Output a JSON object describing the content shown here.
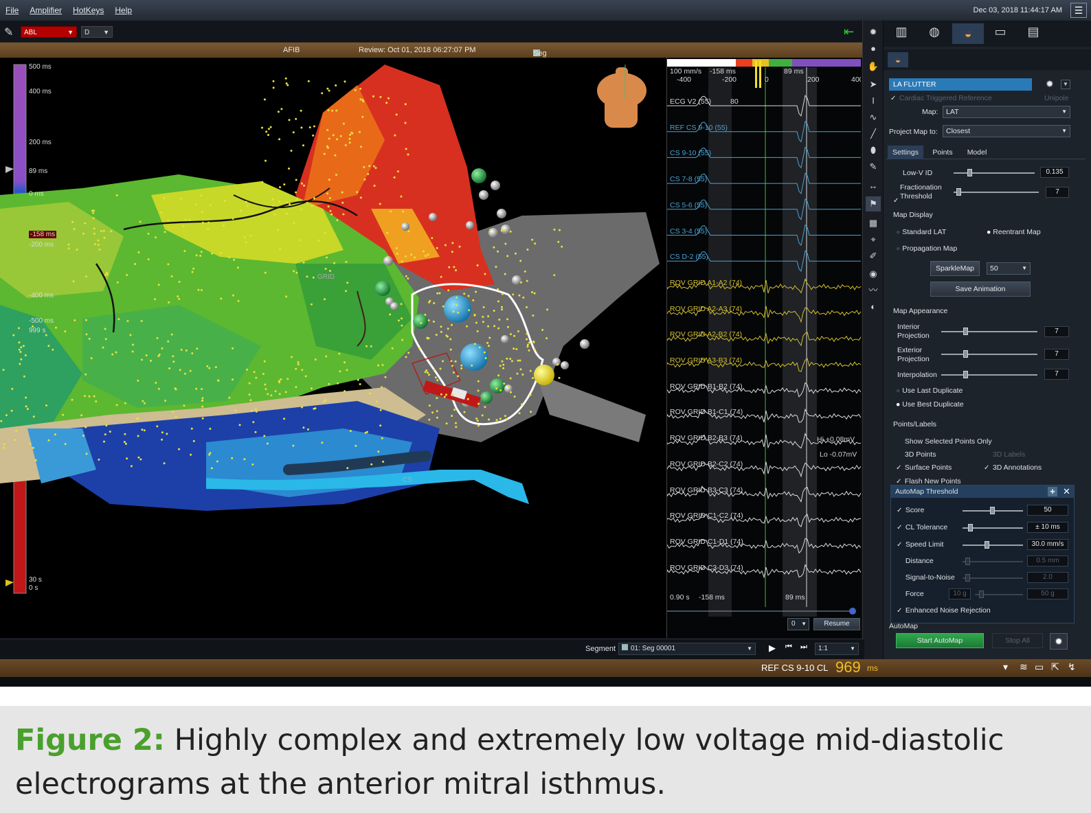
{
  "menu": [
    "File",
    "Amplifier",
    "HotKeys",
    "Help"
  ],
  "datetime": "Dec 03, 2018 11:44:17 AM",
  "toolbar": {
    "catheter": "ABL",
    "electrode": "D"
  },
  "infobar": {
    "mode": "AFIB",
    "review": "Review: Oct 01, 2018 06:27:07 PM",
    "segment": "Seg 00001"
  },
  "scale": {
    "ticks": [
      "500 ms",
      "400 ms",
      "200 ms",
      "89 ms",
      "0 ms",
      "-158 ms",
      "-200 ms",
      "-400 ms",
      "-500 ms",
      "999 s",
      "30 s",
      "0 s"
    ]
  },
  "scene_labels": {
    "grid": "GRID",
    "cs": "CS"
  },
  "egm": {
    "header": {
      "speed": "100 mm/s",
      "left": "-400",
      "ref": "-158 ms",
      "minus200": "-200",
      "zero": "0",
      "ms89": "89 ms",
      "p200": "200",
      "p400": "400"
    },
    "channels": [
      {
        "name": "ECG V2 (55)",
        "extra": "80",
        "color": "#d8dbe0"
      },
      {
        "name": "REF CS 9-10 (55)",
        "color": "#4aa3d8"
      },
      {
        "name": "CS 9-10 (55)",
        "color": "#4aa3d8"
      },
      {
        "name": "CS 7-8 (55)",
        "color": "#4aa3d8"
      },
      {
        "name": "CS 5-6 (55)",
        "color": "#4aa3d8"
      },
      {
        "name": "CS 3-4 (55)",
        "color": "#4aa3d8"
      },
      {
        "name": "CS D-2 (55)",
        "color": "#4aa3d8"
      },
      {
        "name": "ROV GRID A1-A2 (74)",
        "color": "#d4c030"
      },
      {
        "name": "ROV GRID A2-A3 (74)",
        "color": "#d4c030"
      },
      {
        "name": "ROV GRID A2-B2 (74)",
        "color": "#d4c030"
      },
      {
        "name": "ROV GRID A3-B3 (74)",
        "color": "#d4c030"
      },
      {
        "name": "ROV GRID B1-B2 (74)",
        "color": "#d8dbe0"
      },
      {
        "name": "ROV GRID B1-C1 (74)",
        "color": "#d8dbe0"
      },
      {
        "name": "ROV GRID B2-B3 (74)",
        "color": "#d8dbe0"
      },
      {
        "name": "ROV GRID B2-C2 (74)",
        "color": "#d8dbe0"
      },
      {
        "name": "ROV GRID B3-C3 (74)",
        "color": "#d8dbe0"
      },
      {
        "name": "ROV GRID C1-C2 (74)",
        "color": "#d8dbe0"
      },
      {
        "name": "ROV GRID C1-D1 (74)",
        "color": "#d8dbe0"
      },
      {
        "name": "ROV GRID C3-D3 (74)",
        "color": "#d8dbe0"
      }
    ],
    "hi": "Hi +0.08mV",
    "lo": "Lo -0.07mV",
    "footer": {
      "left": "0.90 s",
      "ref": "-158 ms",
      "ms89": "89 ms"
    },
    "speed_select": "0",
    "resume": "Resume"
  },
  "panel": {
    "map_name": "LA FLUTTER",
    "cardiac_ref": "Cardiac Triggered Reference",
    "unipole": "Unipole",
    "map_label": "Map:",
    "map_value": "LAT",
    "project_label": "Project Map to:",
    "project_value": "Closest",
    "tabs": [
      "Settings",
      "Points",
      "Model"
    ],
    "lowv_label": "Low-V ID",
    "lowv_value": "0.135",
    "lowv_level": 0.17,
    "frac_label1": "Fractionation",
    "frac_label2": "Threshold",
    "frac_value": "7",
    "map_display": "Map Display",
    "standard_lat": "Standard LAT",
    "reentrant": "Reentrant Map",
    "propagation": "Propagation Map",
    "sparkle": "SparkleMap",
    "sparkle_value": "50",
    "save_anim": "Save Animation",
    "map_appearance": "Map Appearance",
    "interior1": "Interior",
    "interior2": "Projection",
    "interior_value": "7",
    "exterior1": "Exterior",
    "exterior2": "Projection",
    "exterior_value": "7",
    "interpolation": "Interpolation",
    "interp_value": "7",
    "use_last": "Use Last Duplicate",
    "use_best": "Use Best Duplicate",
    "points_labels": "Points/Labels",
    "show_selected": "Show Selected Points Only",
    "pts3d": "3D Points",
    "labels3d": "3D Labels",
    "surface_pts": "Surface Points",
    "annot3d": "3D Annotations",
    "flash_new": "Flash New Points",
    "automap_threshold": "AutoMap Threshold",
    "score": "Score",
    "score_value": "50",
    "cl_tol": "CL Tolerance",
    "cl_value": "± 10 ms",
    "speed_limit": "Speed Limit",
    "speed_value": "30.0 mm/s",
    "distance": "Distance",
    "distance_value": "0.5 mm",
    "snr": "Signal-to-Noise",
    "snr_value": "2.0",
    "force": "Force",
    "force_min": "10 g",
    "force_max": "50 g",
    "enhanced": "Enhanced Noise Rejection",
    "automap": "AutoMap",
    "start_automap": "Start AutoMap",
    "stop_all": "Stop All"
  },
  "segbar": {
    "label": "Segment",
    "value": "01: Seg 00001",
    "ratio": "1:1"
  },
  "status": {
    "prefix": "REF CS  9-10 CL",
    "cl": "969",
    "unit": "ms"
  },
  "caption": {
    "fig": "Figure 2:",
    "text": " Highly complex and extremely low voltage mid-diastolic electrograms at the anterior mitral isthmus."
  }
}
